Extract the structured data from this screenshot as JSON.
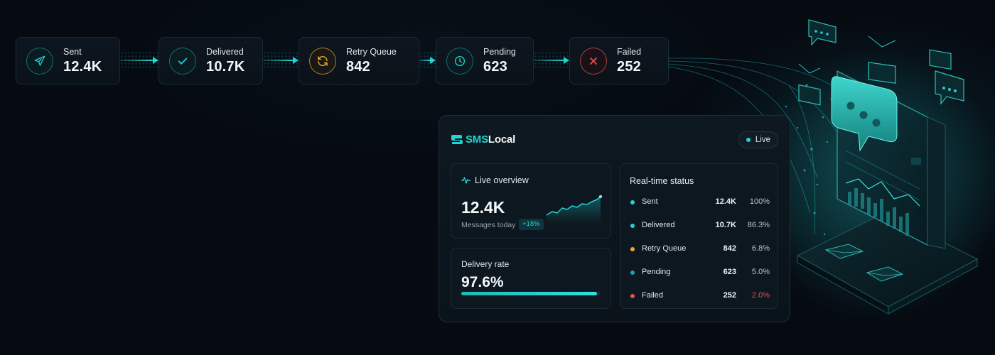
{
  "pipeline": [
    {
      "label": "Sent",
      "value": "12.4K",
      "icon": "send-icon",
      "color": "#22d3d2"
    },
    {
      "label": "Delivered",
      "value": "10.7K",
      "icon": "check-icon",
      "color": "#22d3d2"
    },
    {
      "label": "Retry Queue",
      "value": "842",
      "icon": "refresh-icon",
      "color": "#f5a623"
    },
    {
      "label": "Pending",
      "value": "623",
      "icon": "clock-icon",
      "color": "#22d3d2"
    },
    {
      "label": "Failed",
      "value": "252",
      "icon": "x-icon",
      "color": "#f05050"
    }
  ],
  "dashboard": {
    "brand_prefix": "SMS",
    "brand_suffix": "Local",
    "live_label": "Live",
    "overview": {
      "title": "Live overview",
      "value": "12.4K",
      "caption": "Messages today",
      "change": "+18%"
    },
    "delivery": {
      "title": "Delivery rate",
      "value": "97.6%",
      "progress_percent": 97.6
    },
    "status": {
      "title": "Real-time status",
      "rows": [
        {
          "name": "Sent",
          "count": "12.4K",
          "percent": "100%",
          "color": "#22d3d2"
        },
        {
          "name": "Delivered",
          "count": "10.7K",
          "percent": "86.3%",
          "color": "#22d3d2"
        },
        {
          "name": "Retry Queue",
          "count": "842",
          "percent": "6.8%",
          "color": "#f5a623"
        },
        {
          "name": "Pending",
          "count": "623",
          "percent": "5.0%",
          "color": "#1fa3b5"
        },
        {
          "name": "Failed",
          "count": "252",
          "percent": "2.0%",
          "color": "#f05050"
        }
      ]
    }
  },
  "colors": {
    "accent": "#22d3d2",
    "warning": "#f5a623",
    "danger": "#f05050",
    "background": "#060b12"
  }
}
